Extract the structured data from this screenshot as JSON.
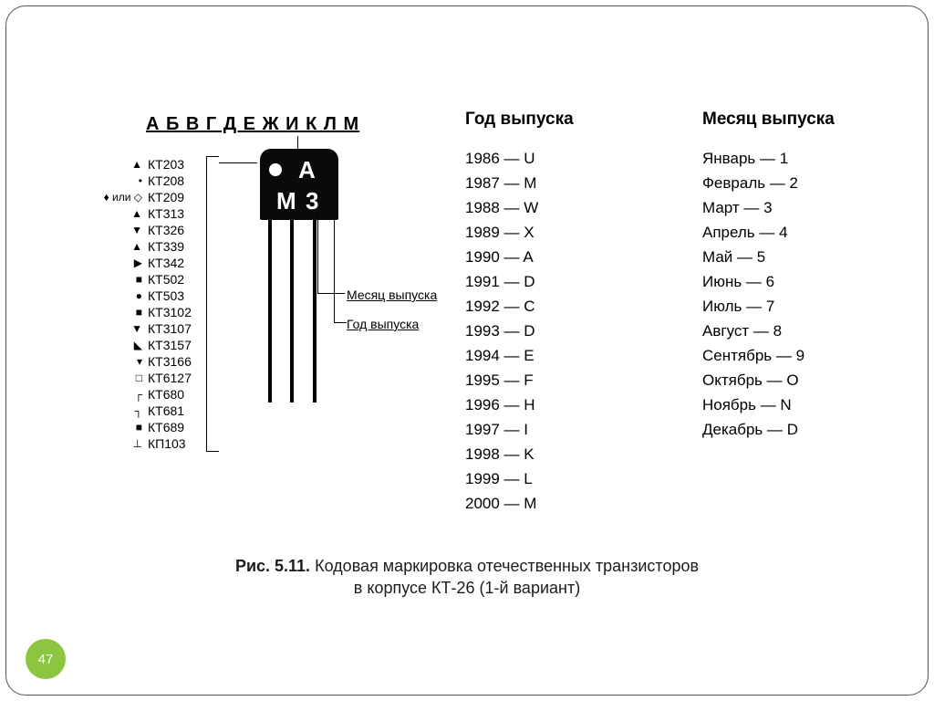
{
  "colors": {
    "text": "#000000",
    "caption": "#1c1c1c",
    "frame": "#555555",
    "body": "#0a0a0a",
    "body_fg": "#ffffff",
    "badge_bg": "#8cc63f",
    "badge_fg": "#ffffff",
    "bg": "#ffffff"
  },
  "badge": "47",
  "diagram": {
    "group_letters": "А Б В Г Д Е Ж И К Л М",
    "body_marks": {
      "dot": "●",
      "letter": "А",
      "m": "М",
      "n": "3"
    },
    "leader_month": "Месяц выпуска",
    "leader_year": "Год выпуска"
  },
  "types": [
    {
      "sym": "▲",
      "code": "КТ203"
    },
    {
      "sym": "•",
      "code": "КТ208"
    },
    {
      "sym": "♦ или ◇",
      "code": "КТ209"
    },
    {
      "sym": "▲",
      "code": "КТ313"
    },
    {
      "sym": "▼",
      "code": "КТ326"
    },
    {
      "sym": "▲",
      "code": "КТ339"
    },
    {
      "sym": "▶",
      "code": "КТ342"
    },
    {
      "sym": "■",
      "code": "КТ502"
    },
    {
      "sym": "●",
      "code": "КТ503"
    },
    {
      "sym": "■",
      "code": "КТ3102"
    },
    {
      "sym": "▼",
      "code": "КТ3107"
    },
    {
      "sym": "◣",
      "code": "КТ3157"
    },
    {
      "sym": "▾",
      "code": "КТ3166"
    },
    {
      "sym": "□",
      "code": "КТ6127"
    },
    {
      "sym": "┌",
      "code": "КТ680"
    },
    {
      "sym": "┐",
      "code": "КТ681"
    },
    {
      "sym": "■",
      "code": "КТ689"
    },
    {
      "sym": "⊥",
      "code": "КП103"
    }
  ],
  "year_col": {
    "title": "Год выпуска",
    "items": [
      "1986 — U",
      "1987 — M",
      "1988 — W",
      "1989 — X",
      "1990 — A",
      "1991 — D",
      "1992 — C",
      "1993 — D",
      "1994 — E",
      "1995 — F",
      "1996 — H",
      "1997 — I",
      "1998 — K",
      "1999 — L",
      "2000 — M"
    ]
  },
  "month_col": {
    "title": "Месяц выпуска",
    "items": [
      "Январь — 1",
      "Февраль — 2",
      "Март — 3",
      "Апрель — 4",
      "Май — 5",
      "Июнь — 6",
      "Июль — 7",
      "Август — 8",
      "Сентябрь — 9",
      "Октябрь — O",
      "Ноябрь — N",
      "Декабрь — D"
    ]
  },
  "caption": {
    "prefix": "Рис. 5.11.",
    "line1": " Кодовая маркировка отечественных транзисторов",
    "line2": "в корпусе КТ-26 (1-й вариант)"
  }
}
